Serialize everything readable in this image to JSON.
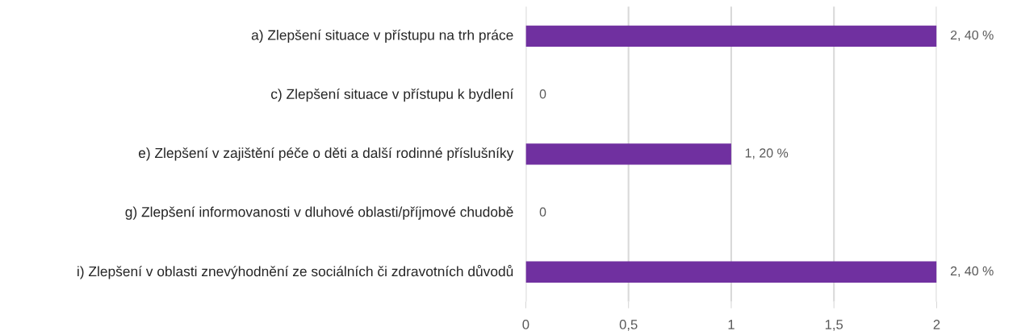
{
  "chart_data": {
    "type": "bar",
    "orientation": "horizontal",
    "categories": [
      "a) Zlepšení situace v přístupu na trh práce",
      "c) Zlepšení situace v přístupu k bydlení",
      "e) Zlepšení v zajištění péče o děti a další rodinné příslušníky",
      "g) Zlepšení informovanosti v dluhové oblasti/příjmové chudobě",
      "i) Zlepšení v oblasti znevýhodnění ze sociálních či zdravotních důvodů"
    ],
    "values": [
      2,
      0,
      1,
      0,
      2
    ],
    "value_labels": [
      "2, 40 %",
      "0",
      "1, 20 %",
      "0",
      "2, 40 %"
    ],
    "color": "#7030a0",
    "xlim": [
      0,
      2
    ],
    "xticks": [
      0,
      {
        "value": 0.5,
        "label": "0,5"
      },
      1,
      {
        "value": 1.5,
        "label": "1,5"
      },
      2
    ],
    "grid": "x"
  }
}
